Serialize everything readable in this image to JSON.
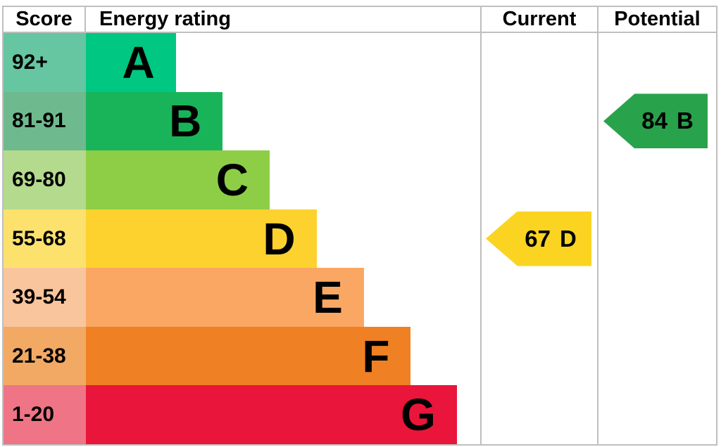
{
  "header": {
    "score": "Score",
    "energy_rating": "Energy rating",
    "current": "Current",
    "potential": "Potential"
  },
  "colors": {
    "background": "#ffffff",
    "grid_border": "#bfbfbf",
    "text": "#000000"
  },
  "chart_data": {
    "type": "bar",
    "title": "EPC energy rating chart",
    "legend_position": "none",
    "bands": [
      {
        "letter": "A",
        "range": "92+",
        "width_pct": 22.8,
        "band_color": "#00c781",
        "range_color": "#65c6a1"
      },
      {
        "letter": "B",
        "range": "81-91",
        "width_pct": 34.7,
        "band_color": "#19b459",
        "range_color": "#6eba8e"
      },
      {
        "letter": "C",
        "range": "69-80",
        "width_pct": 46.6,
        "band_color": "#8dce46",
        "range_color": "#b4da8d"
      },
      {
        "letter": "D",
        "range": "55-68",
        "width_pct": 58.5,
        "band_color": "#fdd22e",
        "range_color": "#fce26d"
      },
      {
        "letter": "E",
        "range": "39-54",
        "width_pct": 70.5,
        "band_color": "#faa764",
        "range_color": "#f9c59d"
      },
      {
        "letter": "F",
        "range": "21-38",
        "width_pct": 82.4,
        "band_color": "#ef8023",
        "range_color": "#f2a964"
      },
      {
        "letter": "G",
        "range": "1-20",
        "width_pct": 94.1,
        "band_color": "#e9153b",
        "range_color": "#ef7486"
      }
    ],
    "current": {
      "score": "67",
      "band": "D",
      "band_index": 3,
      "color": "#fbd321"
    },
    "potential": {
      "score": "84",
      "band": "B",
      "band_index": 1,
      "color": "#29a24c"
    }
  }
}
